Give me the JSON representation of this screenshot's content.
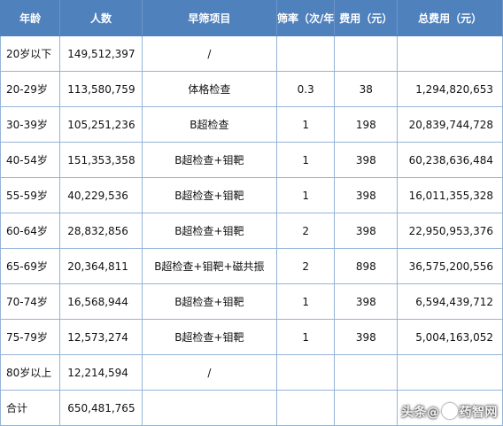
{
  "headers": [
    "年龄",
    "人数",
    "早筛项目",
    "筛率（次/年",
    "费用（元）",
    "总费用（元）"
  ],
  "rows": [
    {
      "age": "20岁以下",
      "pop": "149,512,397",
      "item": "/",
      "rate": "",
      "cost": "",
      "total": ""
    },
    {
      "age": "20-29岁",
      "pop": "113,580,759",
      "item": "体格检查",
      "rate": "0.3",
      "cost": "38",
      "total": "1,294,820,653"
    },
    {
      "age": "30-39岁",
      "pop": "105,251,236",
      "item": "B超检查",
      "rate": "1",
      "cost": "198",
      "total": "20,839,744,728"
    },
    {
      "age": "40-54岁",
      "pop": "151,353,358",
      "item": "B超检查+钼靶",
      "rate": "1",
      "cost": "398",
      "total": "60,238,636,484"
    },
    {
      "age": "55-59岁",
      "pop": "40,229,536",
      "item": "B超检查+钼靶",
      "rate": "1",
      "cost": "398",
      "total": "16,011,355,328"
    },
    {
      "age": "60-64岁",
      "pop": "28,832,856",
      "item": "B超检查+钼靶",
      "rate": "2",
      "cost": "398",
      "total": "22,950,953,376"
    },
    {
      "age": "65-69岁",
      "pop": "20,364,811",
      "item": "B超检查+钼靶+磁共振",
      "rate": "2",
      "cost": "898",
      "total": "36,575,200,556"
    },
    {
      "age": "70-74岁",
      "pop": "16,568,944",
      "item": "B超检查+钼靶",
      "rate": "1",
      "cost": "398",
      "total": "6,594,439,712"
    },
    {
      "age": "75-79岁",
      "pop": "12,573,274",
      "item": "B超检查+钼靶",
      "rate": "1",
      "cost": "398",
      "total": "5,004,163,052"
    },
    {
      "age": "80岁以上",
      "pop": "12,214,594",
      "item": "/",
      "rate": "",
      "cost": "",
      "total": ""
    },
    {
      "age": "合计",
      "pop": "650,481,765",
      "item": "",
      "rate": "",
      "cost": "",
      "total": ""
    }
  ],
  "watermark": {
    "prefix": "头条",
    "at": "@",
    "name": "药智网"
  }
}
